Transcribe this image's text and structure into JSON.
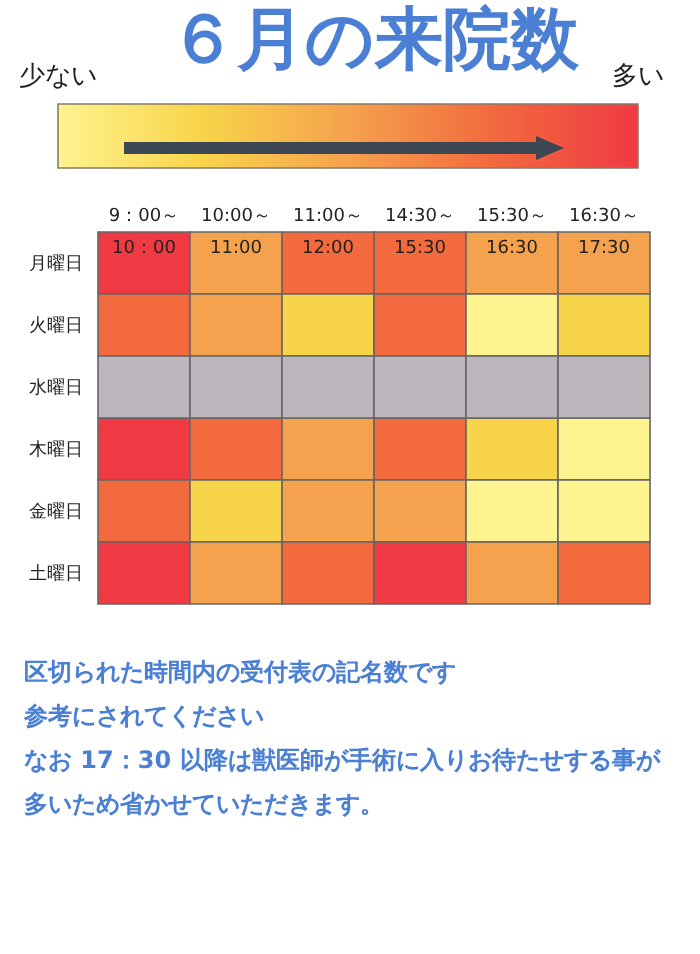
{
  "chart_data": {
    "type": "heatmap",
    "title": "６月の来院数",
    "categories": [
      "9：00～10：00",
      "10:00～11:00",
      "11:00～12:00",
      "14:30～15:30",
      "15:30～16:30",
      "16:30～17:30"
    ],
    "y_categories": [
      "月曜日",
      "火曜日",
      "水曜日",
      "木曜日",
      "金曜日",
      "土曜日"
    ],
    "cells": [
      [
        5,
        3,
        4,
        4,
        3,
        3
      ],
      [
        4,
        3,
        2,
        4,
        1,
        2
      ],
      [
        null,
        null,
        null,
        null,
        null,
        null
      ],
      [
        5,
        4,
        3,
        4,
        2,
        1
      ],
      [
        4,
        2,
        3,
        3,
        1,
        1
      ],
      [
        5,
        3,
        4,
        5,
        3,
        4
      ]
    ],
    "clim": [
      1,
      5
    ],
    "cticks": [
      {
        "value": 1,
        "label": "少ない"
      },
      {
        "value": 5,
        "label": "多い"
      }
    ],
    "colors": [
      "#fdf38f",
      "#f8d44a",
      "#f5a24e",
      "#f26a3e",
      "#ef3a44"
    ],
    "annotations": [
      "区切られた時間内の受付表の記名数です",
      "参考にされてください",
      "なお 17：30 以降は獣医師が手術に入りお待たせする事が多いため省かせていただきます。"
    ]
  }
}
